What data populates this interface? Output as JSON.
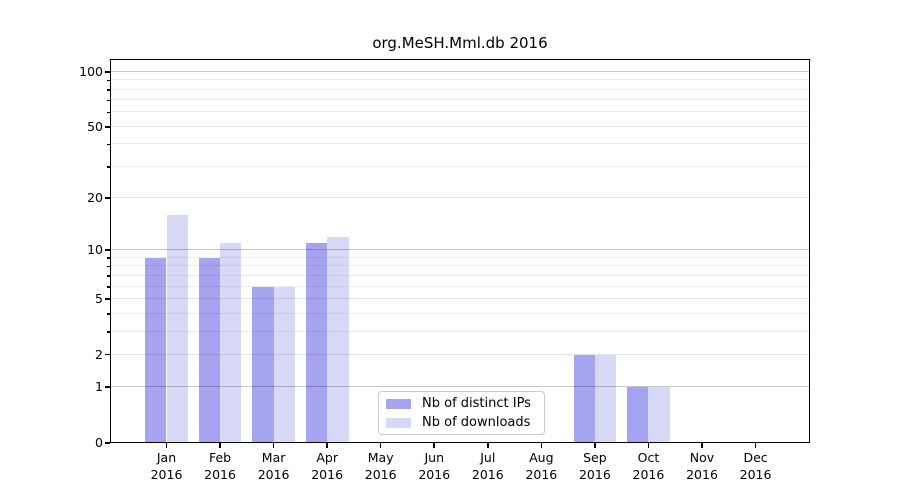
{
  "title": "org.MeSH.Mml.db 2016",
  "chart_data": {
    "type": "bar",
    "title": "org.MeSH.Mml.db 2016",
    "categories": [
      "Jan",
      "Feb",
      "Mar",
      "Apr",
      "May",
      "Jun",
      "Jul",
      "Aug",
      "Sep",
      "Oct",
      "Nov",
      "Dec"
    ],
    "category_year": "2016",
    "series": [
      {
        "name": "Nb of distinct IPs",
        "color": "#a4a4f1",
        "values": [
          9,
          9,
          6,
          11,
          0,
          0,
          0,
          0,
          2,
          1,
          0,
          0
        ]
      },
      {
        "name": "Nb of downloads",
        "color": "#d8d8f7",
        "values": [
          16,
          11,
          6,
          12,
          0,
          0,
          0,
          0,
          2,
          1,
          0,
          0
        ]
      }
    ],
    "y_scale": "log10(1+y)",
    "y_ticks_labeled": [
      0,
      1,
      2,
      5,
      10,
      20,
      50,
      100
    ],
    "y_decade_gridlines": [
      1,
      10,
      100
    ],
    "y_minor_gridlines": [
      3,
      4,
      6,
      7,
      8,
      9,
      30,
      40,
      60,
      70,
      80,
      90
    ],
    "ylim": [
      0,
      117
    ],
    "grid": true,
    "legend_position": "lower center"
  },
  "legend": {
    "items": [
      {
        "label": "Nb of distinct IPs",
        "color": "#a4a4f1"
      },
      {
        "label": "Nb of downloads",
        "color": "#d8d8f7"
      }
    ]
  },
  "colors": {
    "background": "#ffffff",
    "spine": "#000000",
    "major_grid": "#c7c7c7",
    "minor_grid": "#ededed",
    "text": "#000000"
  }
}
